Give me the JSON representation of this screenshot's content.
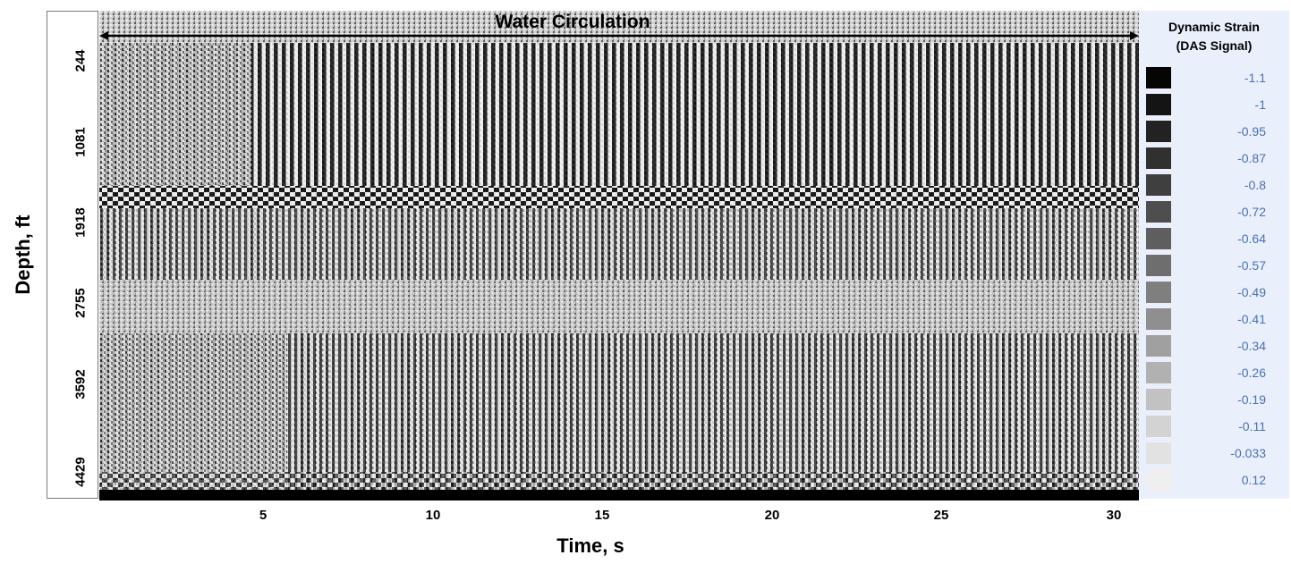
{
  "chart_data": {
    "type": "heatmap",
    "title": "Water Circulation",
    "xlabel": "Time, s",
    "ylabel": "Depth, ft",
    "xlim": [
      0,
      30.5
    ],
    "x_ticks": [
      "5",
      "10",
      "15",
      "20",
      "25",
      "30"
    ],
    "y_ticks": [
      "244",
      "1081",
      "1918",
      "2755",
      "3592",
      "4429"
    ],
    "colorbar": {
      "title_line1": "Dynamic Strain",
      "title_line2": "(DAS Signal)",
      "values": [
        "-1.1",
        "-1",
        "-0.95",
        "-0.87",
        "-0.8",
        "-0.72",
        "-0.64",
        "-0.57",
        "-0.49",
        "-0.41",
        "-0.34",
        "-0.26",
        "-0.19",
        "-0.11",
        "-0.033",
        "0.12"
      ],
      "colors": [
        "#050505",
        "#141414",
        "#222222",
        "#303030",
        "#3f3f3f",
        "#4e4e4e",
        "#5e5e5e",
        "#6e6e6e",
        "#7f7f7f",
        "#8f8f8f",
        "#a0a0a0",
        "#b1b1b1",
        "#c2c2c2",
        "#d3d3d3",
        "#e2e2e2",
        "#efefef"
      ]
    },
    "grid": false,
    "legend_position": "right"
  }
}
